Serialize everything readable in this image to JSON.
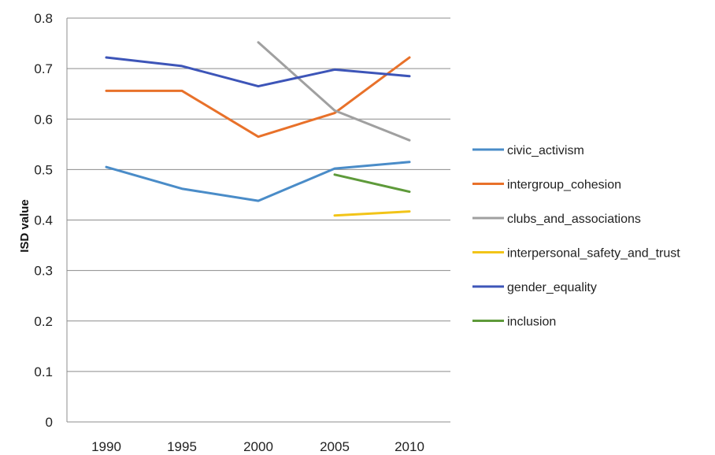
{
  "chart_data": {
    "type": "line",
    "x": [
      "1990",
      "1995",
      "2000",
      "2005",
      "2010"
    ],
    "ylabel": "ISD value",
    "xlabel": "",
    "ylim": [
      0,
      0.8
    ],
    "y_ticks": [
      "0",
      "0.1",
      "0.2",
      "0.3",
      "0.4",
      "0.5",
      "0.6",
      "0.7",
      "0.8"
    ],
    "grid": true,
    "legend_position": "right",
    "series": [
      {
        "name": "civic_activism",
        "color": "#4a8cc8",
        "values": [
          0.505,
          0.462,
          0.438,
          0.502,
          0.515
        ]
      },
      {
        "name": "intergroup_cohesion",
        "color": "#e8712a",
        "values": [
          0.656,
          0.656,
          0.565,
          0.612,
          0.722
        ]
      },
      {
        "name": "clubs_and_associations",
        "color": "#a0a0a0",
        "values": [
          null,
          null,
          0.752,
          0.617,
          0.558
        ]
      },
      {
        "name": "interpersonal_safety_and_trust",
        "color": "#f2c418",
        "values": [
          null,
          null,
          null,
          0.409,
          0.417
        ]
      },
      {
        "name": "gender_equality",
        "color": "#3d55b8",
        "values": [
          0.722,
          0.705,
          0.665,
          0.698,
          0.685
        ]
      },
      {
        "name": "inclusion",
        "color": "#5e9a3a",
        "values": [
          null,
          null,
          null,
          0.49,
          0.456
        ]
      }
    ]
  }
}
